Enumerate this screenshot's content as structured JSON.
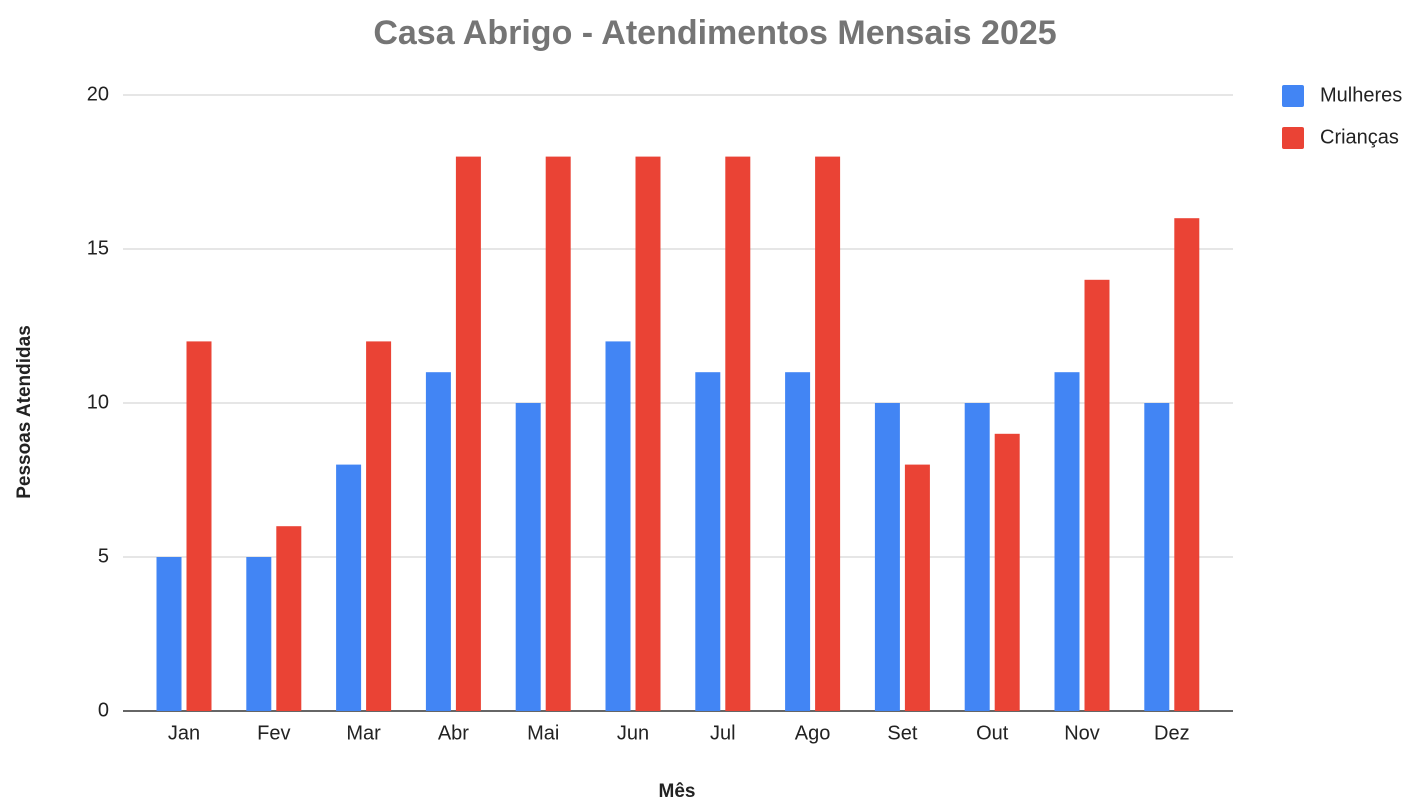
{
  "chart_data": {
    "type": "bar",
    "title": "Casa Abrigo - Atendimentos Mensais 2025",
    "x_label": "Mês",
    "y_label": "Pessoas Atendidas",
    "categories": [
      "Jan",
      "Fev",
      "Mar",
      "Abr",
      "Mai",
      "Jun",
      "Jul",
      "Ago",
      "Set",
      "Out",
      "Nov",
      "Dez"
    ],
    "series": [
      {
        "name": "Mulheres",
        "color": "#4285f4",
        "values": [
          5,
          5,
          8,
          11,
          10,
          12,
          11,
          11,
          10,
          10,
          11,
          10
        ]
      },
      {
        "name": "Crianças",
        "color": "#ea4335",
        "values": [
          12,
          6,
          12,
          18,
          18,
          18,
          18,
          18,
          8,
          9,
          14,
          16
        ]
      }
    ],
    "ylim": [
      0,
      20
    ],
    "yticks": [
      0,
      5,
      10,
      15,
      20
    ],
    "grid": true,
    "legend": "right"
  }
}
